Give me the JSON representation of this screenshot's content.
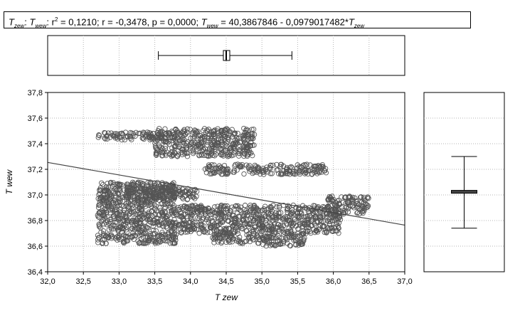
{
  "header": {
    "var_y": "T",
    "var_y_sub": "zew",
    "sep1": ": ",
    "var_x": "T",
    "var_x_sub": "wew",
    "sep2": ": ",
    "r2_label": "r",
    "r2_sup": "2",
    "stats": " = 0,1210; r = -0,3478, p = 0,0000; ",
    "eq_var": "T",
    "eq_var_sub": "wew",
    "eq_body": " = 40,3867846 - 0,0979017482*",
    "eq_x": "T",
    "eq_x_sub": "zew"
  },
  "chart_data": {
    "type": "scatter",
    "title": "T zew: T wew: r2 = 0,1210; r = -0,3478, p = 0,0000; T wew = 40,3867846 - 0,0979017482*T zew",
    "xlabel": "T zew",
    "ylabel": "T wew",
    "xlim": [
      32.0,
      37.0
    ],
    "ylim": [
      36.4,
      37.8
    ],
    "x_ticks": [
      "32,0",
      "32,5",
      "33,0",
      "33,5",
      "34,0",
      "34,5",
      "35,0",
      "35,5",
      "36,0",
      "36,5",
      "37,0"
    ],
    "y_ticks": [
      "36,4",
      "36,6",
      "36,8",
      "37,0",
      "37,2",
      "37,4",
      "37,6",
      "37,8"
    ],
    "grid": true,
    "regression": {
      "intercept": 40.3867846,
      "slope": -0.0979017482
    },
    "clusters": [
      {
        "x0": 32.7,
        "x1": 33.8,
        "y0": 37.43,
        "y1": 37.49
      },
      {
        "x0": 33.5,
        "x1": 34.9,
        "y0": 37.3,
        "y1": 37.52
      },
      {
        "x0": 34.2,
        "x1": 35.9,
        "y0": 37.16,
        "y1": 37.24
      },
      {
        "x0": 32.7,
        "x1": 33.8,
        "y0": 36.62,
        "y1": 37.1
      },
      {
        "x0": 33.8,
        "x1": 35.0,
        "y0": 36.7,
        "y1": 36.92
      },
      {
        "x0": 34.3,
        "x1": 35.0,
        "y0": 36.62,
        "y1": 36.7
      },
      {
        "x0": 35.0,
        "x1": 35.6,
        "y0": 36.6,
        "y1": 36.92
      },
      {
        "x0": 35.6,
        "x1": 36.1,
        "y0": 36.7,
        "y1": 36.92
      },
      {
        "x0": 35.9,
        "x1": 36.5,
        "y0": 36.85,
        "y1": 36.99
      },
      {
        "x0": 33.1,
        "x1": 34.1,
        "y0": 36.96,
        "y1": 37.06
      }
    ],
    "boxplot_x": {
      "min": 33.55,
      "q1": 34.46,
      "median": 34.5,
      "q3": 34.55,
      "max": 35.42
    },
    "boxplot_y": {
      "min": 36.74,
      "q1": 37.02,
      "median": 37.025,
      "q3": 37.03,
      "max": 37.3
    }
  }
}
